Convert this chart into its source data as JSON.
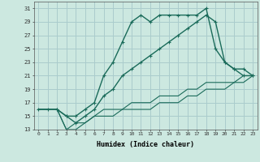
{
  "background_color": "#cce8e0",
  "grid_color": "#aacccc",
  "line_color": "#1a6b5a",
  "xlabel": "Humidex (Indice chaleur)",
  "ylim": [
    13,
    32
  ],
  "xlim": [
    -0.5,
    23.5
  ],
  "yticks": [
    13,
    15,
    17,
    19,
    21,
    23,
    25,
    27,
    29,
    31
  ],
  "xticks": [
    0,
    1,
    2,
    3,
    4,
    5,
    6,
    7,
    8,
    9,
    10,
    11,
    12,
    13,
    14,
    15,
    16,
    17,
    18,
    19,
    20,
    21,
    22,
    23
  ],
  "curve1_x": [
    0,
    1,
    2,
    3,
    4,
    5,
    6,
    7,
    8,
    9,
    10,
    11,
    12,
    13,
    14,
    15,
    16,
    17,
    18,
    19,
    20,
    21,
    22,
    23
  ],
  "curve1_y": [
    16,
    16,
    16,
    15,
    15,
    16,
    17,
    21,
    23,
    26,
    29,
    30,
    29,
    30,
    30,
    30,
    30,
    30,
    31,
    25,
    23,
    22,
    21,
    21
  ],
  "curve2_x": [
    2,
    3,
    4,
    5,
    6,
    7,
    8,
    9,
    10,
    11,
    12,
    13,
    14,
    15,
    16,
    17,
    18,
    19,
    20,
    21,
    22,
    23
  ],
  "curve2_y": [
    16,
    15,
    14,
    15,
    16,
    18,
    19,
    21,
    22,
    23,
    24,
    25,
    26,
    27,
    28,
    29,
    30,
    29,
    23,
    22,
    22,
    21
  ],
  "curve3_x": [
    0,
    1,
    2,
    3,
    4,
    5,
    6,
    7,
    8,
    9,
    10,
    11,
    12,
    13,
    14,
    15,
    16,
    17,
    18,
    19,
    20,
    21,
    22,
    23
  ],
  "curve3_y": [
    16,
    16,
    16,
    13,
    13,
    14,
    15,
    16,
    16,
    16,
    17,
    17,
    17,
    18,
    18,
    18,
    19,
    19,
    20,
    20,
    20,
    20,
    21,
    21
  ],
  "curve4_x": [
    0,
    1,
    2,
    3,
    4,
    5,
    6,
    7,
    8,
    9,
    10,
    11,
    12,
    13,
    14,
    15,
    16,
    17,
    18,
    19,
    20,
    21,
    22,
    23
  ],
  "curve4_y": [
    16,
    16,
    16,
    13,
    14,
    14,
    15,
    15,
    15,
    16,
    16,
    16,
    16,
    17,
    17,
    17,
    18,
    18,
    19,
    19,
    19,
    20,
    20,
    21
  ]
}
